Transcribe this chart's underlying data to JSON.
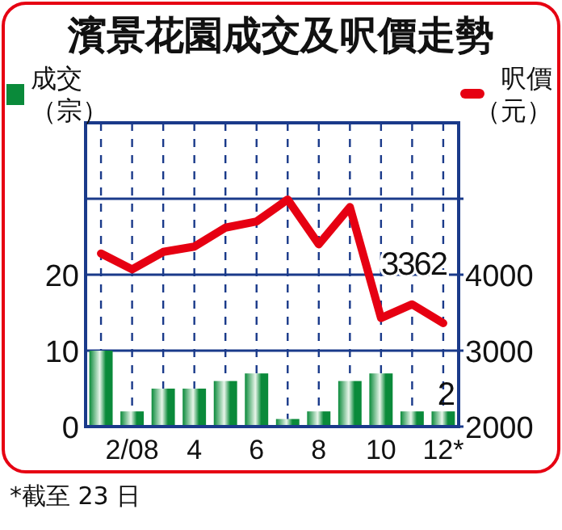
{
  "chart_data": {
    "type": "bar",
    "title": "濱景花園成交及呎價走勢",
    "categories": [
      null,
      "2/08",
      null,
      "4",
      null,
      "6",
      null,
      "8",
      null,
      "10",
      null,
      "12*"
    ],
    "series": [
      {
        "name": "成交（宗）",
        "color": "#0a8a3a",
        "values": [
          10,
          2,
          5,
          5,
          6,
          7,
          1,
          2,
          6,
          7,
          2,
          2
        ],
        "value_labels": [
          null,
          null,
          null,
          null,
          null,
          null,
          null,
          null,
          null,
          null,
          null,
          "2"
        ]
      },
      {
        "name": "呎價（元）",
        "type": "line",
        "axis": "y2",
        "color": "#e60012",
        "values": [
          4280,
          4070,
          4300,
          4370,
          4620,
          4700,
          4990,
          4400,
          4890,
          3430,
          3610,
          3362
        ],
        "value_labels": [
          null,
          null,
          null,
          null,
          null,
          null,
          null,
          null,
          null,
          null,
          null,
          "3362"
        ]
      }
    ],
    "ylim": [
      0,
      40
    ],
    "yticks": [
      0,
      10,
      20,
      {
        "value": 30,
        "label": null
      }
    ],
    "y2lim": [
      2000,
      6000
    ],
    "y2ticks": [
      2000,
      3000,
      4000,
      {
        "value": 5000,
        "label": null
      }
    ],
    "grid": true,
    "legend": "top",
    "marker": "none",
    "line_style": "solid",
    "annotations": [
      "*截至 23 日"
    ]
  }
}
